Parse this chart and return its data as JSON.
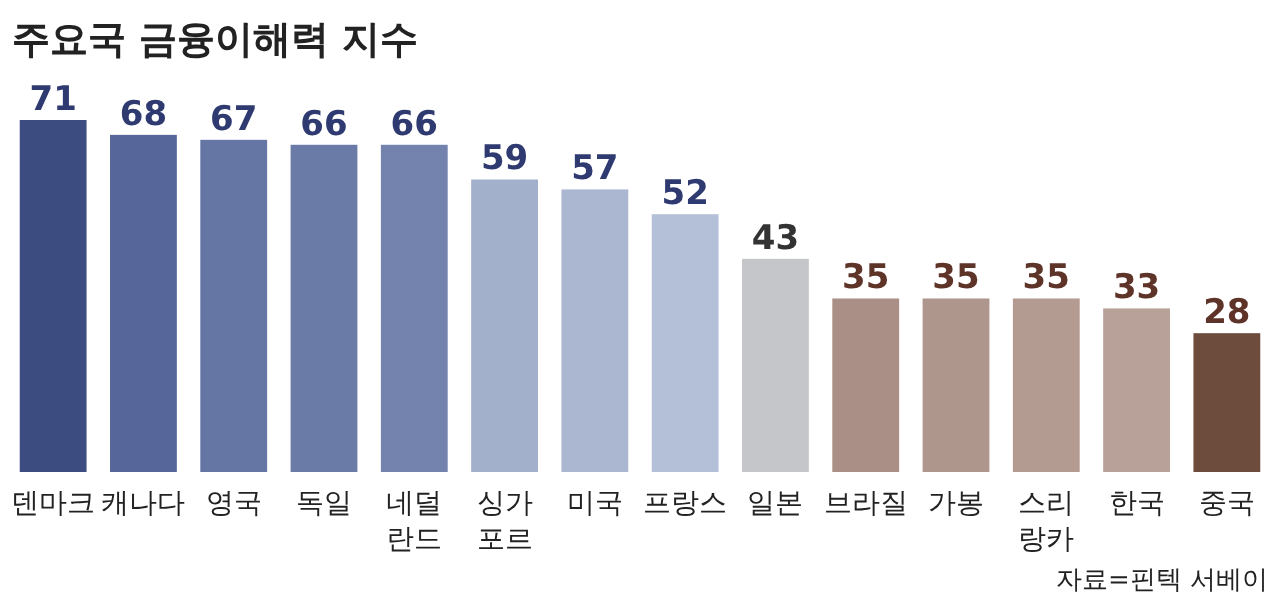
{
  "chart_data": {
    "type": "bar",
    "title": "주요국 금융이해력 지수",
    "categories": [
      "덴마크",
      "캐나다",
      "영국",
      "독일",
      "네덜\n란드",
      "싱가\n포르",
      "미국",
      "프랑스",
      "일본",
      "브라질",
      "가봉",
      "스리\n랑카",
      "한국",
      "중국"
    ],
    "values": [
      71,
      68,
      67,
      66,
      66,
      59,
      57,
      52,
      43,
      35,
      35,
      35,
      33,
      28
    ],
    "colors": [
      "#3c4b80",
      "#56669a",
      "#6575a4",
      "#6b7ba8",
      "#7383ae",
      "#a3b0cb",
      "#abb7d0",
      "#b4c0d7",
      "#c4c6c9",
      "#a98f85",
      "#ae968c",
      "#b39b91",
      "#b8a198",
      "#6d4c3e"
    ],
    "data_labels": true,
    "annotations": [
      "자료=핀텍 서베이"
    ]
  }
}
